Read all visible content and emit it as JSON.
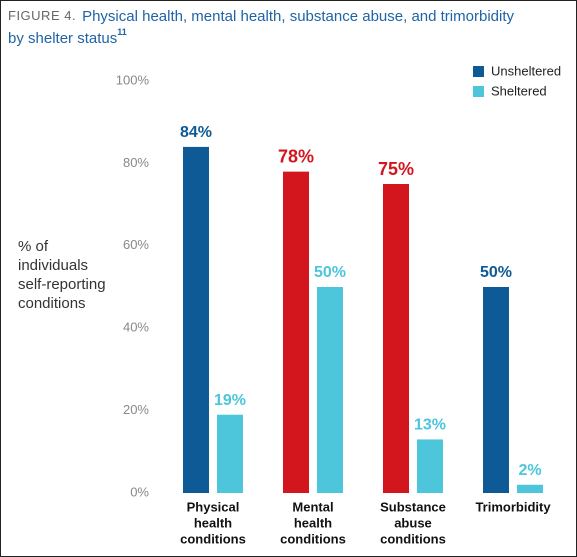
{
  "chart_data": {
    "type": "bar",
    "title_prefix": "FIGURE 4.",
    "title": [
      "Physical health, mental health, substance abuse, and trimorbidity",
      "by shelter status"
    ],
    "title_note": "11",
    "y_label": [
      "% of",
      "individuals",
      "self-reporting",
      "conditions"
    ],
    "categories": [
      [
        "Physical",
        "health",
        "conditions"
      ],
      [
        "Mental",
        "health",
        "conditions"
      ],
      [
        "Substance",
        "abuse",
        "conditions"
      ],
      [
        "Trimorbidity"
      ]
    ],
    "series": [
      {
        "name": "Unsheltered",
        "color": "#0d5a96",
        "colors": [
          "#0d5a96",
          "#d3161d",
          "#d3161d",
          "#0d5a96"
        ],
        "values": [
          84,
          78,
          75,
          50
        ],
        "value_labels": [
          "84%",
          "78%",
          "75%",
          "50%"
        ]
      },
      {
        "name": "Sheltered",
        "color": "#4dc5db",
        "values": [
          19,
          50,
          13,
          2
        ],
        "value_labels": [
          "19%",
          "50%",
          "13%",
          "2%"
        ]
      }
    ],
    "ylim": [
      0,
      100
    ],
    "yticks": [
      {
        "value": 0,
        "label": "0%"
      },
      {
        "value": 20,
        "label": "20%"
      },
      {
        "value": 40,
        "label": "40%"
      },
      {
        "value": 60,
        "label": "60%"
      },
      {
        "value": 80,
        "label": "80%"
      },
      {
        "value": 100,
        "label": "100%"
      }
    ],
    "grid": false,
    "legend": "top-right"
  }
}
